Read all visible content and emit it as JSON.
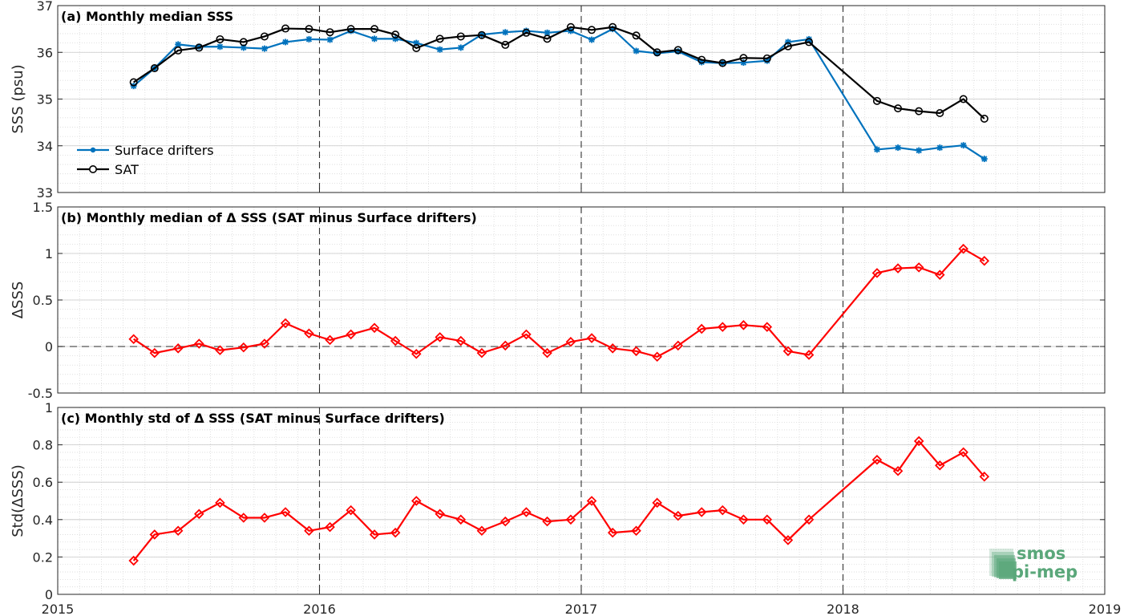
{
  "chart_data": [
    {
      "type": "line",
      "title": "(a) Monthly median SSS",
      "xlabel": "",
      "ylabel": "SSS (psu)",
      "xlim": [
        2015,
        2019
      ],
      "ylim": [
        33,
        37
      ],
      "yticks": [
        "33",
        "34",
        "35",
        "36",
        "37"
      ],
      "grid": true,
      "legend_position": "lower-left",
      "series": [
        {
          "name": "Surface drifters",
          "color": "#0072BD",
          "marker": "asterisk",
          "x": [
            2015.29,
            2015.37,
            2015.46,
            2015.54,
            2015.62,
            2015.71,
            2015.79,
            2015.87,
            2015.96,
            2016.04,
            2016.12,
            2016.21,
            2016.29,
            2016.37,
            2016.46,
            2016.54,
            2016.62,
            2016.71,
            2016.79,
            2016.87,
            2016.96,
            2017.04,
            2017.12,
            2017.21,
            2017.29,
            2017.37,
            2017.46,
            2017.54,
            2017.62,
            2017.71,
            2017.79,
            2017.87,
            2018.13,
            2018.21,
            2018.29,
            2018.37,
            2018.46,
            2018.54
          ],
          "y": [
            35.28,
            35.66,
            36.17,
            36.12,
            36.12,
            36.1,
            36.08,
            36.22,
            36.28,
            36.27,
            36.46,
            36.29,
            36.29,
            36.2,
            36.06,
            36.1,
            36.38,
            36.43,
            36.46,
            36.42,
            36.46,
            36.27,
            36.5,
            36.03,
            35.98,
            36.02,
            35.79,
            35.77,
            35.78,
            35.82,
            36.22,
            36.28,
            33.92,
            33.96,
            33.9,
            33.96,
            34.01,
            33.72
          ]
        },
        {
          "name": "SAT",
          "color": "#000000",
          "marker": "circle",
          "x": [
            2015.29,
            2015.37,
            2015.46,
            2015.54,
            2015.62,
            2015.71,
            2015.79,
            2015.87,
            2015.96,
            2016.04,
            2016.12,
            2016.21,
            2016.29,
            2016.37,
            2016.46,
            2016.54,
            2016.62,
            2016.71,
            2016.79,
            2016.87,
            2016.96,
            2017.04,
            2017.12,
            2017.21,
            2017.29,
            2017.37,
            2017.46,
            2017.54,
            2017.62,
            2017.71,
            2017.79,
            2017.87,
            2018.13,
            2018.21,
            2018.29,
            2018.37,
            2018.46,
            2018.54
          ],
          "y": [
            35.36,
            35.66,
            36.04,
            36.1,
            36.28,
            36.22,
            36.34,
            36.51,
            36.5,
            36.43,
            36.5,
            36.5,
            36.38,
            36.09,
            36.29,
            36.34,
            36.37,
            36.16,
            36.42,
            36.29,
            36.54,
            36.48,
            36.54,
            36.36,
            36.0,
            36.05,
            35.84,
            35.77,
            35.88,
            35.87,
            36.13,
            36.22,
            34.96,
            34.8,
            34.74,
            34.7,
            35.0,
            34.58
          ]
        }
      ]
    },
    {
      "type": "line",
      "title": "(b) Monthly median of Δ SSS (SAT minus Surface drifters)",
      "xlabel": "",
      "ylabel": "ΔSSS",
      "xlim": [
        2015,
        2019
      ],
      "ylim": [
        -0.5,
        1.5
      ],
      "yticks": [
        "-0.5",
        "0",
        "0.5",
        "1",
        "1.5"
      ],
      "grid": true,
      "reference_line": 0,
      "series": [
        {
          "color": "#FF0000",
          "marker": "diamond",
          "x": [
            2015.29,
            2015.37,
            2015.46,
            2015.54,
            2015.62,
            2015.71,
            2015.79,
            2015.87,
            2015.96,
            2016.04,
            2016.12,
            2016.21,
            2016.29,
            2016.37,
            2016.46,
            2016.54,
            2016.62,
            2016.71,
            2016.79,
            2016.87,
            2016.96,
            2017.04,
            2017.12,
            2017.21,
            2017.29,
            2017.37,
            2017.46,
            2017.54,
            2017.62,
            2017.71,
            2017.79,
            2017.87,
            2018.13,
            2018.21,
            2018.29,
            2018.37,
            2018.46,
            2018.54
          ],
          "y": [
            0.08,
            -0.07,
            -0.02,
            0.03,
            -0.04,
            -0.01,
            0.03,
            0.25,
            0.14,
            0.07,
            0.13,
            0.2,
            0.06,
            -0.08,
            0.1,
            0.06,
            -0.07,
            0.01,
            0.13,
            -0.07,
            0.05,
            0.09,
            -0.02,
            -0.05,
            -0.11,
            0.01,
            0.19,
            0.21,
            0.23,
            0.21,
            -0.05,
            -0.09,
            0.79,
            0.84,
            0.85,
            0.77,
            1.05,
            0.92
          ]
        }
      ]
    },
    {
      "type": "line",
      "title": "(c) Monthly std of Δ SSS (SAT minus Surface drifters)",
      "xlabel": "",
      "ylabel": "Std(ΔSSS)",
      "xlim": [
        2015,
        2019
      ],
      "ylim": [
        0,
        1
      ],
      "yticks": [
        "0",
        "0.2",
        "0.4",
        "0.6",
        "0.8",
        "1"
      ],
      "xticks": [
        "2015",
        "2016",
        "2017",
        "2018",
        "2019"
      ],
      "grid": true,
      "series": [
        {
          "color": "#FF0000",
          "marker": "diamond",
          "x": [
            2015.29,
            2015.37,
            2015.46,
            2015.54,
            2015.62,
            2015.71,
            2015.79,
            2015.87,
            2015.96,
            2016.04,
            2016.12,
            2016.21,
            2016.29,
            2016.37,
            2016.46,
            2016.54,
            2016.62,
            2016.71,
            2016.79,
            2016.87,
            2016.96,
            2017.04,
            2017.12,
            2017.21,
            2017.29,
            2017.37,
            2017.46,
            2017.54,
            2017.62,
            2017.71,
            2017.79,
            2017.87,
            2018.13,
            2018.21,
            2018.29,
            2018.37,
            2018.46,
            2018.54
          ],
          "y": [
            0.18,
            0.32,
            0.34,
            0.43,
            0.49,
            0.41,
            0.41,
            0.44,
            0.34,
            0.36,
            0.45,
            0.32,
            0.33,
            0.5,
            0.43,
            0.4,
            0.34,
            0.39,
            0.44,
            0.39,
            0.4,
            0.5,
            0.33,
            0.34,
            0.49,
            0.42,
            0.44,
            0.45,
            0.4,
            0.4,
            0.29,
            0.4,
            0.72,
            0.66,
            0.82,
            0.69,
            0.76,
            0.63
          ]
        }
      ]
    }
  ],
  "logo": {
    "line1": "smos",
    "line2": "pi-mep",
    "color": "#5aa77a"
  }
}
